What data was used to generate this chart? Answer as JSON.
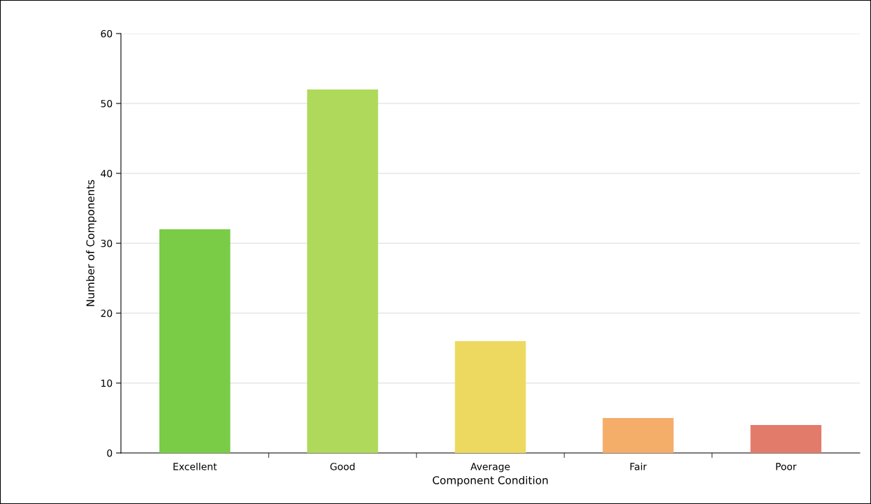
{
  "chart_data": {
    "type": "bar",
    "xlabel": "Component Condition",
    "ylabel": "Number of Components",
    "categories": [
      "Excellent",
      "Good",
      "Average",
      "Fair",
      "Poor"
    ],
    "values": [
      32,
      52,
      16,
      5,
      4
    ],
    "colors": [
      "#7acc46",
      "#afd95a",
      "#eed960",
      "#f5ad6a",
      "#e37b6b"
    ],
    "ylim": [
      0,
      60
    ],
    "yticks": [
      0,
      10,
      20,
      30,
      40,
      50,
      60
    ],
    "grid": "y"
  }
}
